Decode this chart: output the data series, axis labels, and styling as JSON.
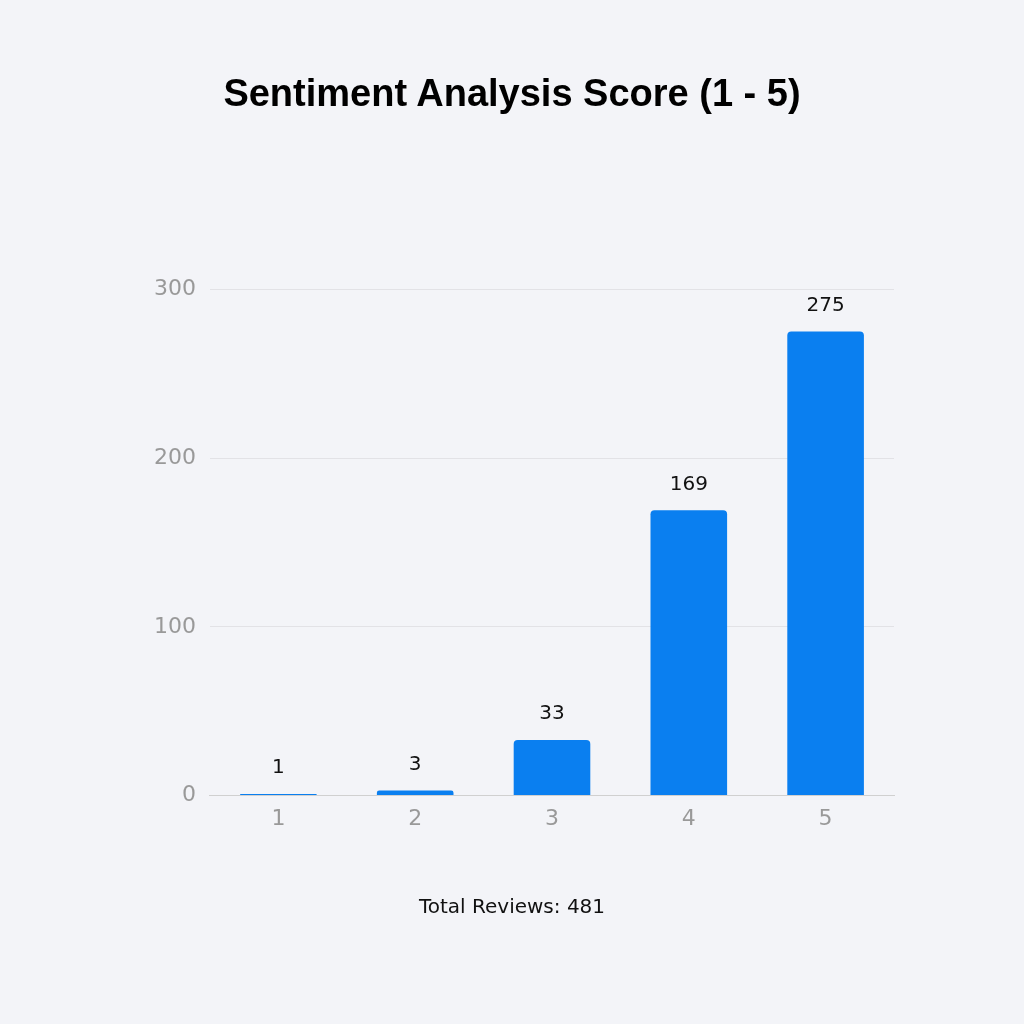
{
  "chart_data": {
    "type": "bar",
    "title": "Sentiment Analysis Score (1 - 5)",
    "categories": [
      "1",
      "2",
      "3",
      "4",
      "5"
    ],
    "values": [
      1,
      3,
      33,
      169,
      275
    ],
    "color": "#0a7ff0",
    "ylim": [
      0,
      300
    ],
    "yticks": [
      0,
      100,
      200,
      300
    ],
    "grid": "y",
    "data_labels": true,
    "annotations": [
      "Total Reviews: 481"
    ]
  }
}
